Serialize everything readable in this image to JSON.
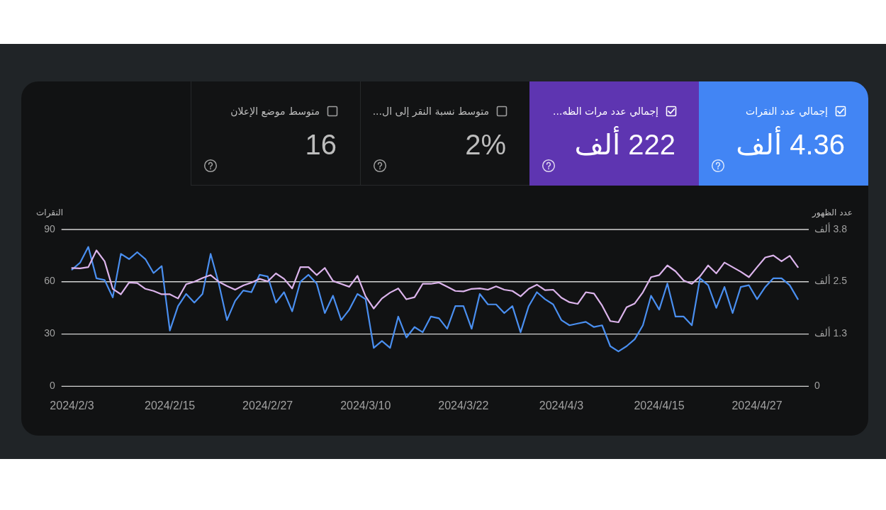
{
  "chart_data": [
    {
      "type": "other",
      "categories": [
        "إجمالي عدد النقرات",
        "إجمالي عدد مرات الظه...",
        "متوسط نسبة النقر إلى ال...",
        "متوسط موضع الإعلان"
      ],
      "value_labels": [
        "4.36 ألف",
        "222 ألف",
        "2%",
        "16"
      ],
      "colors": [
        "#4285f4",
        "#5e35b1",
        null,
        null
      ]
    },
    {
      "type": "line",
      "ylabel": "النقرات",
      "y2label": "عدد الظهور",
      "x": [
        "2024-02-03",
        "2024-02-04",
        "2024-02-05",
        "2024-02-06",
        "2024-02-07",
        "2024-02-08",
        "2024-02-09",
        "2024-02-10",
        "2024-02-11",
        "2024-02-12",
        "2024-02-13",
        "2024-02-14",
        "2024-02-15",
        "2024-02-16",
        "2024-02-17",
        "2024-02-18",
        "2024-02-19",
        "2024-02-20",
        "2024-02-21",
        "2024-02-22",
        "2024-02-23",
        "2024-02-24",
        "2024-02-25",
        "2024-02-26",
        "2024-02-27",
        "2024-02-28",
        "2024-02-29",
        "2024-03-01",
        "2024-03-02",
        "2024-03-03",
        "2024-03-04",
        "2024-03-05",
        "2024-03-06",
        "2024-03-07",
        "2024-03-08",
        "2024-03-09",
        "2024-03-10",
        "2024-03-11",
        "2024-03-12",
        "2024-03-13",
        "2024-03-14",
        "2024-03-15",
        "2024-03-16",
        "2024-03-17",
        "2024-03-18",
        "2024-03-19",
        "2024-03-20",
        "2024-03-21",
        "2024-03-22",
        "2024-03-23",
        "2024-03-24",
        "2024-03-25",
        "2024-03-26",
        "2024-03-27",
        "2024-03-28",
        "2024-03-29",
        "2024-03-30",
        "2024-03-31",
        "2024-04-01",
        "2024-04-02",
        "2024-04-03",
        "2024-04-04",
        "2024-04-05",
        "2024-04-06",
        "2024-04-07",
        "2024-04-08",
        "2024-04-09",
        "2024-04-10",
        "2024-04-11",
        "2024-04-12",
        "2024-04-13",
        "2024-04-14",
        "2024-04-15",
        "2024-04-16",
        "2024-04-17",
        "2024-04-18",
        "2024-04-19",
        "2024-04-20",
        "2024-04-21",
        "2024-04-22",
        "2024-04-23",
        "2024-04-24",
        "2024-04-25",
        "2024-04-26",
        "2024-04-27",
        "2024-04-28",
        "2024-04-29",
        "2024-04-30",
        "2024-05-01",
        "2024-05-02"
      ],
      "series": [
        {
          "color": "#4a8ff0",
          "values": [
            67,
            71,
            80,
            62,
            61,
            51,
            76,
            73,
            77,
            73,
            65,
            69,
            32,
            46,
            53,
            48,
            53,
            76,
            59,
            38,
            49,
            55,
            54,
            64,
            63,
            48,
            54,
            43,
            60,
            64,
            59,
            42,
            52,
            38,
            44,
            53,
            50,
            22,
            26,
            22,
            40,
            28,
            34,
            31,
            40,
            39,
            33,
            46,
            46,
            33,
            53,
            47,
            47,
            42,
            46,
            31,
            46,
            54,
            50,
            47,
            38,
            35,
            36,
            37,
            34,
            35,
            23,
            20,
            23,
            27,
            35,
            52,
            44,
            59,
            40,
            40,
            35,
            62,
            58,
            45,
            57,
            42,
            57,
            58,
            50,
            57,
            62,
            62,
            58,
            50
          ]
        },
        {
          "color": "#dcb4ec",
          "axis": "y2",
          "values": [
            2.83,
            2.82,
            2.85,
            3.25,
            2.99,
            2.33,
            2.2,
            2.48,
            2.47,
            2.33,
            2.28,
            2.2,
            2.2,
            2.1,
            2.44,
            2.5,
            2.59,
            2.66,
            2.5,
            2.4,
            2.31,
            2.41,
            2.48,
            2.57,
            2.51,
            2.7,
            2.57,
            2.34,
            2.85,
            2.85,
            2.66,
            2.83,
            2.52,
            2.45,
            2.38,
            2.64,
            2.15,
            1.86,
            2.1,
            2.24,
            2.34,
            2.08,
            2.13,
            2.45,
            2.45,
            2.48,
            2.38,
            2.28,
            2.27,
            2.33,
            2.34,
            2.31,
            2.39,
            2.31,
            2.28,
            2.15,
            2.33,
            2.43,
            2.3,
            2.31,
            2.12,
            2.01,
            1.97,
            2.25,
            2.22,
            1.93,
            1.56,
            1.53,
            1.89,
            1.98,
            2.25,
            2.61,
            2.66,
            2.89,
            2.75,
            2.53,
            2.45,
            2.63,
            2.89,
            2.7,
            2.96,
            2.85,
            2.74,
            2.61,
            2.85,
            3.08,
            3.13,
            2.99,
            3.12,
            2.85
          ]
        }
      ],
      "xlim": [
        "2024-02-01T17:00",
        "2024-05-03T08:00"
      ],
      "xticks": [
        {
          "value": "2024-02-03",
          "label": "2024/2/3"
        },
        {
          "value": "2024-02-15",
          "label": "2024/2/15"
        },
        {
          "value": "2024-02-27",
          "label": "2024/2/27"
        },
        {
          "value": "2024-03-10",
          "label": "2024/3/10"
        },
        {
          "value": "2024-03-22",
          "label": "2024/3/22"
        },
        {
          "value": "2024-04-03",
          "label": "2024/4/3"
        },
        {
          "value": "2024-04-15",
          "label": "2024/4/15"
        },
        {
          "value": "2024-04-27",
          "label": "2024/4/27"
        }
      ],
      "ylim": [
        0,
        90
      ],
      "yticks": [
        0,
        30,
        60,
        90
      ],
      "y2lim": [
        0,
        3.75
      ],
      "y2ticks": [
        0,
        {
          "value": 1.25,
          "label": "1.3 ألف"
        },
        {
          "value": 2.5,
          "label": "2.5 ألف"
        },
        {
          "value": 3.75,
          "label": "3.8 ألف"
        }
      ],
      "grid": "y"
    }
  ]
}
